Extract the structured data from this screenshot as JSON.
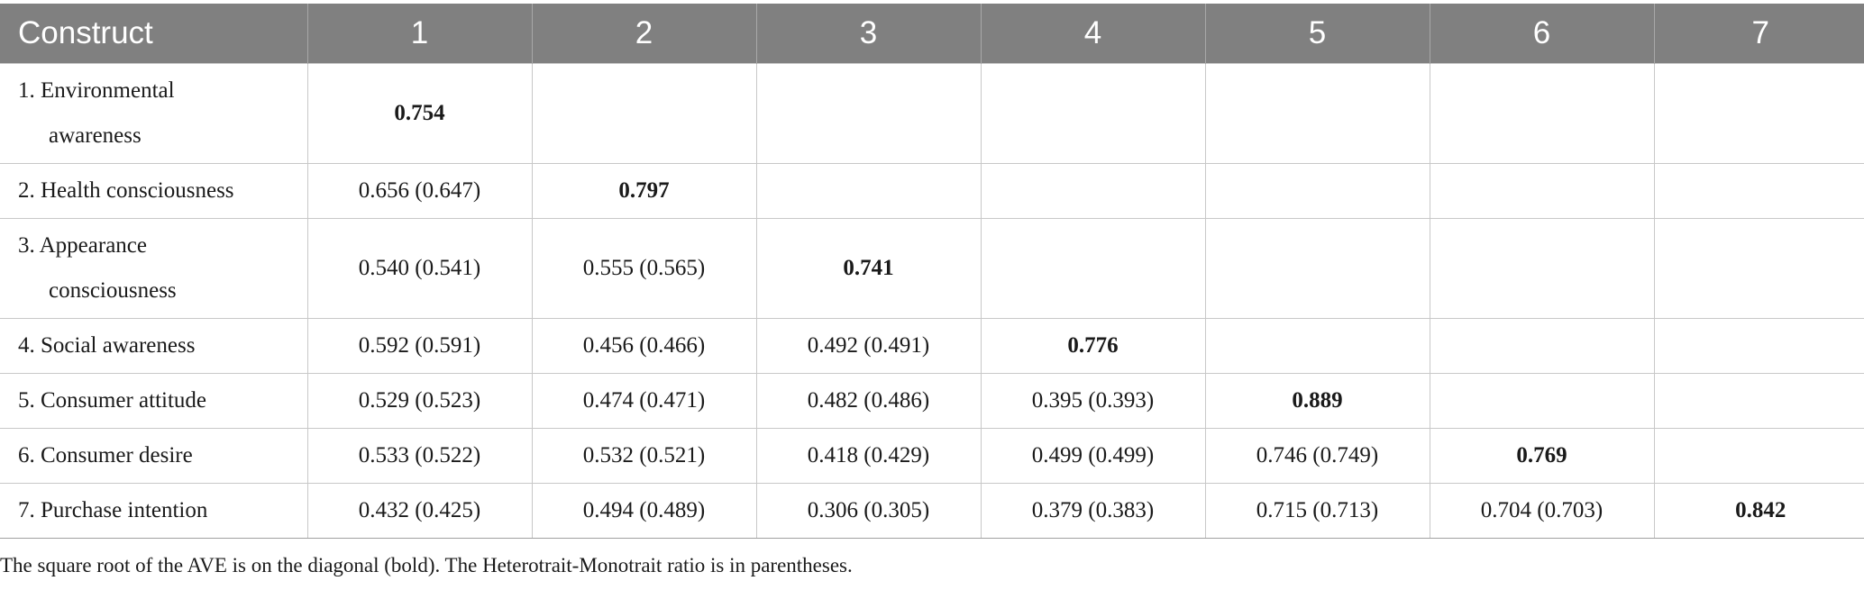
{
  "table": {
    "header": [
      "Construct",
      "1",
      "2",
      "3",
      "4",
      "5",
      "6",
      "7"
    ],
    "rows": [
      {
        "label": [
          "1. Environmental",
          "awareness"
        ],
        "cells": [
          "0.754",
          "",
          "",
          "",
          "",
          "",
          ""
        ]
      },
      {
        "label": [
          "2. Health consciousness"
        ],
        "cells": [
          "0.656 (0.647)",
          "0.797",
          "",
          "",
          "",
          "",
          ""
        ]
      },
      {
        "label": [
          "3. Appearance",
          "consciousness"
        ],
        "cells": [
          "0.540 (0.541)",
          "0.555 (0.565)",
          "0.741",
          "",
          "",
          "",
          ""
        ]
      },
      {
        "label": [
          "4. Social awareness"
        ],
        "cells": [
          "0.592 (0.591)",
          "0.456 (0.466)",
          "0.492 (0.491)",
          "0.776",
          "",
          "",
          ""
        ]
      },
      {
        "label": [
          "5. Consumer attitude"
        ],
        "cells": [
          "0.529 (0.523)",
          "0.474 (0.471)",
          "0.482 (0.486)",
          "0.395 (0.393)",
          "0.889",
          "",
          ""
        ]
      },
      {
        "label": [
          "6. Consumer desire"
        ],
        "cells": [
          "0.533 (0.522)",
          "0.532 (0.521)",
          "0.418 (0.429)",
          "0.499 (0.499)",
          "0.746 (0.749)",
          "0.769",
          ""
        ]
      },
      {
        "label": [
          "7. Purchase intention"
        ],
        "cells": [
          "0.432 (0.425)",
          "0.494 (0.489)",
          "0.306 (0.305)",
          "0.379 (0.383)",
          "0.715 (0.713)",
          "0.704 (0.703)",
          "0.842"
        ]
      }
    ]
  },
  "note": "The square root of the AVE is on the diagonal (bold). The Heterotrait-Monotrait ratio is in parentheses.",
  "colors": {
    "header_bg": "#808080",
    "header_text": "#ffffff",
    "grid": "#c8c8c8"
  }
}
